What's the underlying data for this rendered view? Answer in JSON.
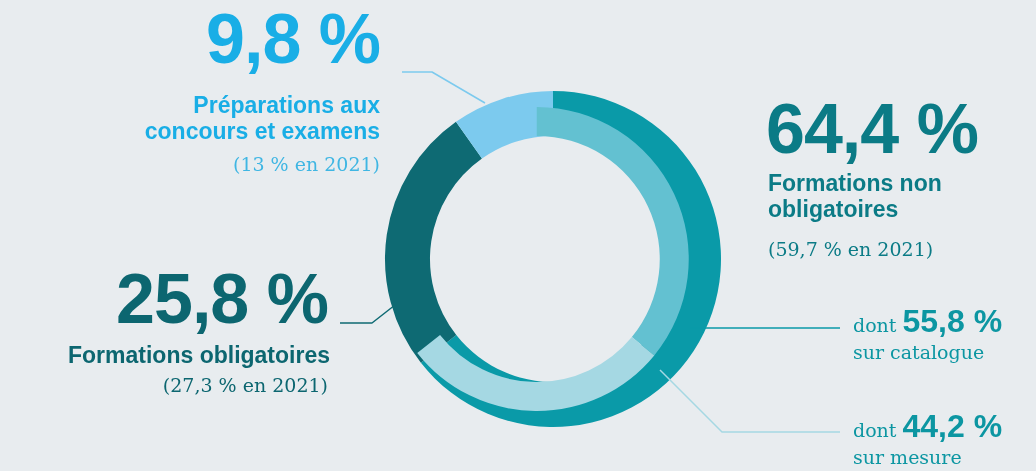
{
  "chart_data": [
    {
      "type": "donut",
      "categories": [
        "Formations non obligatoires",
        "Formations obligatoires",
        "Préparations aux concours et examens"
      ],
      "values": [
        64.4,
        25.8,
        9.8
      ],
      "colors": [
        "#0a9aa8",
        "#0e6a73",
        "#7ccaee"
      ],
      "value_labels": [
        "64,4 %",
        "25,8 %",
        "9,8 %"
      ],
      "annotations": [
        "(59,7 % en 2021)",
        "(27,3 % en 2021)",
        "(13 % en 2021)"
      ]
    },
    {
      "type": "donut",
      "categories": [
        "sur catalogue",
        "sur mesure"
      ],
      "values": [
        55.8,
        44.2
      ],
      "colors": [
        "#63c1d1",
        "#a5d8e3"
      ],
      "value_labels": [
        "55,8 %",
        "44,2 %"
      ],
      "annotations": [
        "dont",
        "dont"
      ]
    }
  ]
}
